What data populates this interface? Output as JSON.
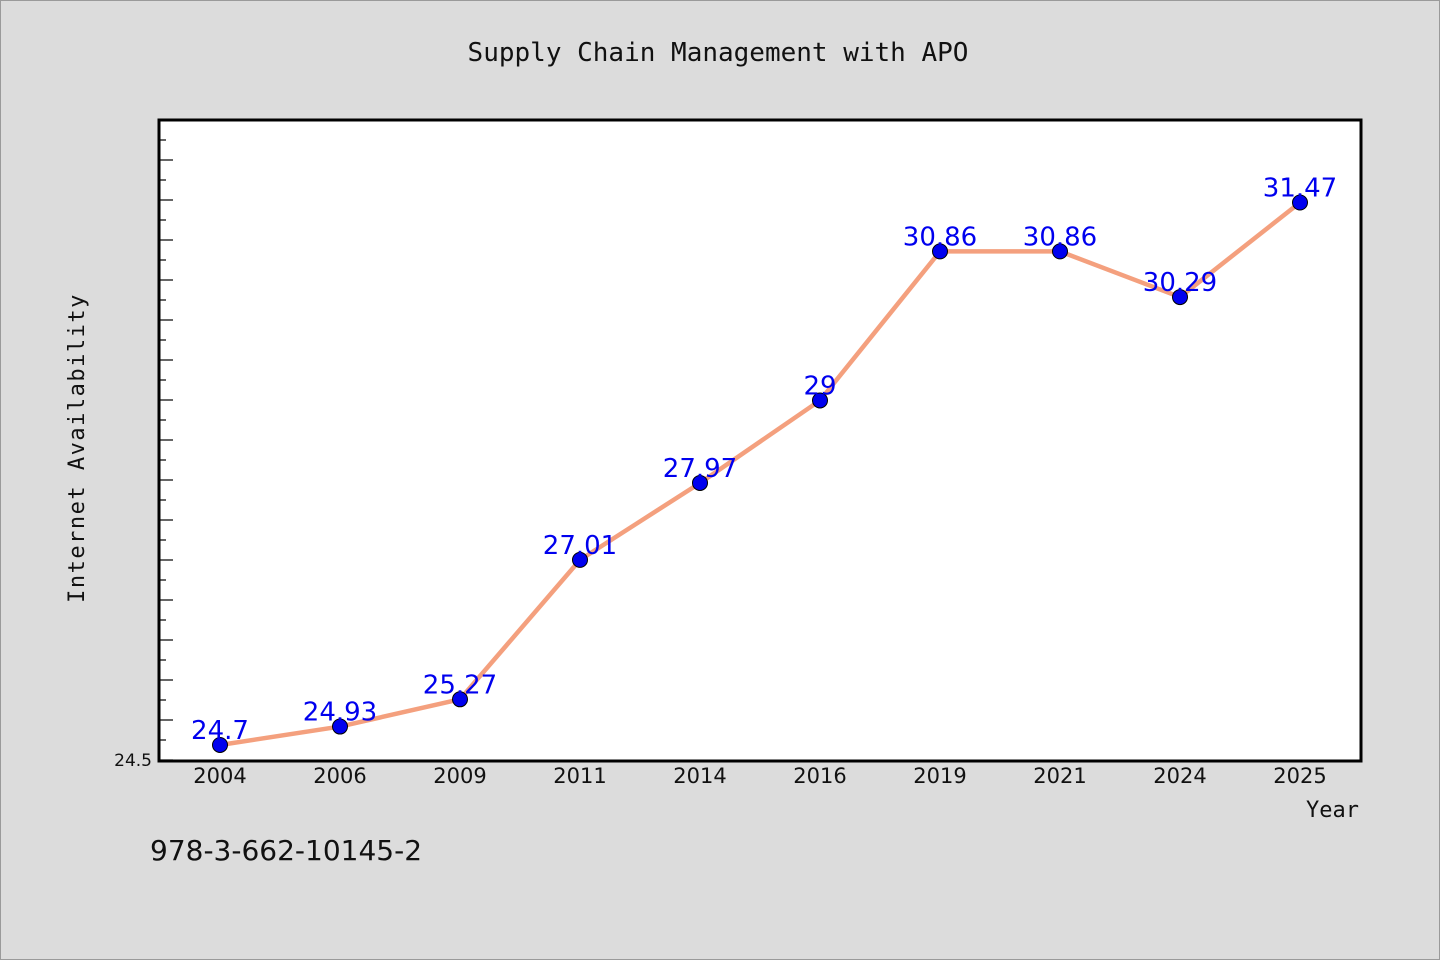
{
  "footer_code": "978-3-662-10145-2",
  "chart_data": {
    "type": "line",
    "title": "Supply Chain Management with APO",
    "xlabel": "Year",
    "ylabel": "Internet Availability",
    "categories": [
      "2004",
      "2006",
      "2009",
      "2011",
      "2014",
      "2016",
      "2019",
      "2021",
      "2024",
      "2025"
    ],
    "series": [
      {
        "values": [
          24.7,
          24.93,
          25.27,
          27.01,
          27.97,
          29,
          30.86,
          30.86,
          30.29,
          31.47
        ],
        "labels": [
          "24.7",
          "24.93",
          "25.27",
          "27.01",
          "27.97",
          "29",
          "30.86",
          "30.86",
          "30.29",
          "31.47"
        ],
        "line_color": "#f4a07e",
        "marker_color": "#0000ee",
        "label_color": "#0000ee"
      }
    ],
    "ylim": [
      24.5,
      32.5
    ],
    "yticks_labeled": [
      "24.5"
    ],
    "grid": false,
    "legend": "none",
    "background": "#dcdcdc",
    "plot_background": "#ffffff"
  }
}
